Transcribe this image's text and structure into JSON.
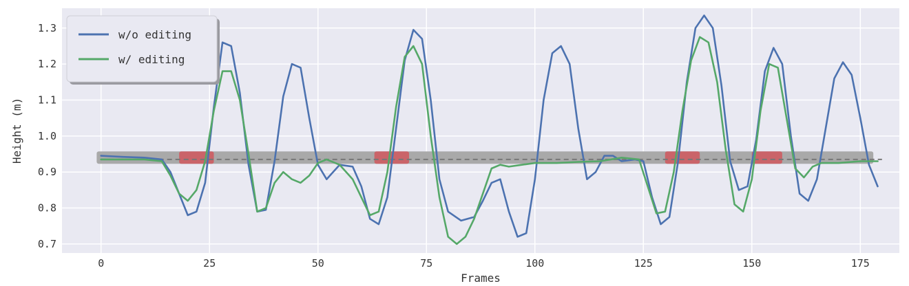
{
  "chart_data": {
    "type": "line",
    "xlabel": "Frames",
    "ylabel": "Height (m)",
    "xlim": [
      -9,
      184
    ],
    "ylim": [
      0.675,
      1.355
    ],
    "xticks": [
      0,
      25,
      50,
      75,
      100,
      125,
      150,
      175
    ],
    "yticks": [
      0.7,
      0.8,
      0.9,
      1.0,
      1.1,
      1.2,
      1.3
    ],
    "ytick_labels": [
      "0.7",
      "0.8",
      "0.9",
      "1.0",
      "1.1",
      "1.2",
      "1.3"
    ],
    "grid": true,
    "legend_position": "top-left",
    "background": "#e9e9f2",
    "reference_line": {
      "y": 0.935,
      "style": "dashed",
      "color": "#777777",
      "x_range": [
        0,
        180
      ]
    },
    "contact_bar": {
      "y": 0.94,
      "x_range": [
        -1,
        178
      ],
      "color": "#a9a9a9"
    },
    "highlight_segments": [
      [
        18,
        26
      ],
      [
        63,
        71
      ],
      [
        130,
        138
      ],
      [
        150,
        157
      ]
    ],
    "highlight_color": "#d0585e",
    "series": [
      {
        "name": "w/o editing",
        "color": "#4c72b0",
        "points": [
          [
            0,
            0.945
          ],
          [
            5,
            0.942
          ],
          [
            10,
            0.94
          ],
          [
            14,
            0.935
          ],
          [
            16,
            0.9
          ],
          [
            18,
            0.84
          ],
          [
            20,
            0.78
          ],
          [
            22,
            0.79
          ],
          [
            24,
            0.87
          ],
          [
            26,
            1.08
          ],
          [
            28,
            1.26
          ],
          [
            30,
            1.25
          ],
          [
            32,
            1.12
          ],
          [
            34,
            0.92
          ],
          [
            36,
            0.79
          ],
          [
            38,
            0.795
          ],
          [
            40,
            0.93
          ],
          [
            42,
            1.11
          ],
          [
            44,
            1.2
          ],
          [
            46,
            1.19
          ],
          [
            48,
            1.05
          ],
          [
            50,
            0.92
          ],
          [
            52,
            0.88
          ],
          [
            55,
            0.92
          ],
          [
            58,
            0.915
          ],
          [
            60,
            0.86
          ],
          [
            62,
            0.77
          ],
          [
            64,
            0.755
          ],
          [
            66,
            0.83
          ],
          [
            68,
            1.02
          ],
          [
            70,
            1.21
          ],
          [
            72,
            1.295
          ],
          [
            74,
            1.27
          ],
          [
            76,
            1.1
          ],
          [
            78,
            0.88
          ],
          [
            80,
            0.79
          ],
          [
            83,
            0.765
          ],
          [
            86,
            0.775
          ],
          [
            88,
            0.82
          ],
          [
            90,
            0.87
          ],
          [
            92,
            0.88
          ],
          [
            94,
            0.79
          ],
          [
            96,
            0.72
          ],
          [
            98,
            0.73
          ],
          [
            100,
            0.88
          ],
          [
            102,
            1.1
          ],
          [
            104,
            1.23
          ],
          [
            106,
            1.25
          ],
          [
            108,
            1.2
          ],
          [
            110,
            1.02
          ],
          [
            112,
            0.88
          ],
          [
            114,
            0.9
          ],
          [
            116,
            0.945
          ],
          [
            118,
            0.945
          ],
          [
            120,
            0.93
          ],
          [
            123,
            0.935
          ],
          [
            125,
            0.93
          ],
          [
            127,
            0.83
          ],
          [
            129,
            0.755
          ],
          [
            131,
            0.775
          ],
          [
            133,
            0.93
          ],
          [
            135,
            1.15
          ],
          [
            137,
            1.3
          ],
          [
            139,
            1.335
          ],
          [
            141,
            1.3
          ],
          [
            143,
            1.14
          ],
          [
            145,
            0.93
          ],
          [
            147,
            0.85
          ],
          [
            149,
            0.86
          ],
          [
            151,
            0.99
          ],
          [
            153,
            1.18
          ],
          [
            155,
            1.245
          ],
          [
            157,
            1.2
          ],
          [
            159,
            1.0
          ],
          [
            161,
            0.84
          ],
          [
            163,
            0.82
          ],
          [
            165,
            0.88
          ],
          [
            167,
            1.02
          ],
          [
            169,
            1.16
          ],
          [
            171,
            1.205
          ],
          [
            173,
            1.17
          ],
          [
            175,
            1.05
          ],
          [
            177,
            0.92
          ],
          [
            179,
            0.86
          ]
        ]
      },
      {
        "name": "w/ editing",
        "color": "#55a868",
        "points": [
          [
            0,
            0.935
          ],
          [
            5,
            0.935
          ],
          [
            10,
            0.935
          ],
          [
            14,
            0.93
          ],
          [
            16,
            0.89
          ],
          [
            18,
            0.84
          ],
          [
            20,
            0.82
          ],
          [
            22,
            0.85
          ],
          [
            24,
            0.93
          ],
          [
            26,
            1.07
          ],
          [
            28,
            1.18
          ],
          [
            30,
            1.18
          ],
          [
            32,
            1.1
          ],
          [
            34,
            0.95
          ],
          [
            36,
            0.79
          ],
          [
            38,
            0.8
          ],
          [
            40,
            0.87
          ],
          [
            42,
            0.9
          ],
          [
            44,
            0.88
          ],
          [
            46,
            0.87
          ],
          [
            48,
            0.89
          ],
          [
            50,
            0.925
          ],
          [
            52,
            0.935
          ],
          [
            55,
            0.92
          ],
          [
            58,
            0.88
          ],
          [
            60,
            0.83
          ],
          [
            62,
            0.78
          ],
          [
            64,
            0.79
          ],
          [
            66,
            0.9
          ],
          [
            68,
            1.08
          ],
          [
            70,
            1.22
          ],
          [
            72,
            1.25
          ],
          [
            74,
            1.2
          ],
          [
            76,
            1.0
          ],
          [
            78,
            0.83
          ],
          [
            80,
            0.72
          ],
          [
            82,
            0.7
          ],
          [
            84,
            0.72
          ],
          [
            86,
            0.77
          ],
          [
            88,
            0.84
          ],
          [
            90,
            0.91
          ],
          [
            92,
            0.92
          ],
          [
            94,
            0.915
          ],
          [
            97,
            0.92
          ],
          [
            100,
            0.925
          ],
          [
            105,
            0.925
          ],
          [
            110,
            0.928
          ],
          [
            115,
            0.93
          ],
          [
            120,
            0.94
          ],
          [
            124,
            0.935
          ],
          [
            126,
            0.86
          ],
          [
            128,
            0.785
          ],
          [
            130,
            0.79
          ],
          [
            132,
            0.9
          ],
          [
            134,
            1.07
          ],
          [
            136,
            1.21
          ],
          [
            138,
            1.275
          ],
          [
            140,
            1.26
          ],
          [
            142,
            1.15
          ],
          [
            144,
            0.96
          ],
          [
            146,
            0.81
          ],
          [
            148,
            0.79
          ],
          [
            150,
            0.88
          ],
          [
            152,
            1.07
          ],
          [
            154,
            1.2
          ],
          [
            156,
            1.19
          ],
          [
            158,
            1.05
          ],
          [
            160,
            0.91
          ],
          [
            162,
            0.885
          ],
          [
            164,
            0.915
          ],
          [
            166,
            0.925
          ],
          [
            170,
            0.925
          ],
          [
            175,
            0.93
          ],
          [
            179,
            0.93
          ]
        ]
      }
    ]
  }
}
